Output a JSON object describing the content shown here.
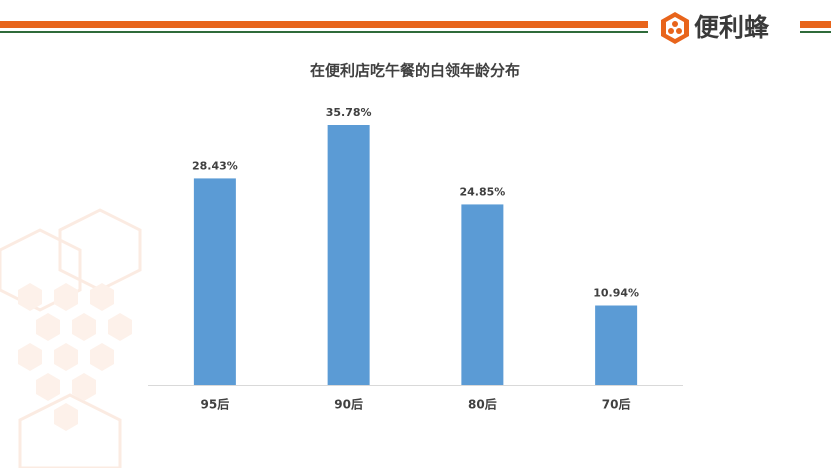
{
  "brand": "便利蜂",
  "chart_data": {
    "type": "bar",
    "title": "在便利店吃午餐的白领年龄分布",
    "categories": [
      "95后",
      "90后",
      "80后",
      "70后"
    ],
    "values": [
      28.43,
      35.78,
      24.85,
      10.94
    ],
    "value_labels": [
      "28.43%",
      "35.78%",
      "24.85%",
      "10.94%"
    ],
    "color": "#5b9bd5"
  }
}
